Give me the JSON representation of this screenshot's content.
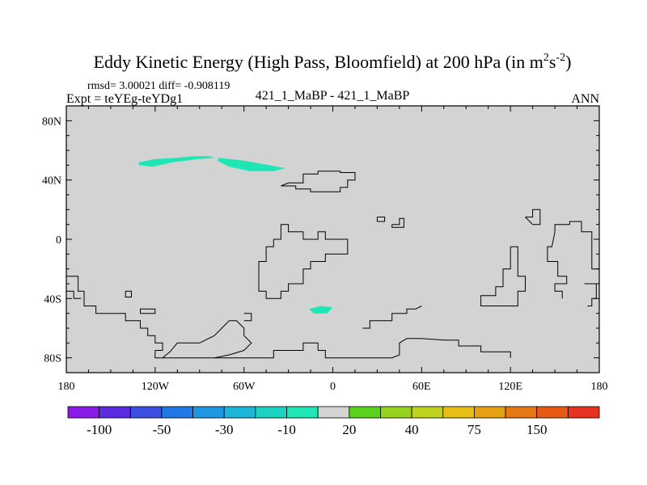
{
  "chart_data": {
    "type": "heatmap",
    "title": "Eddy Kinetic Energy (High Pass, Bloomfield) at 200 hPa (in m",
    "title_units": {
      "base": "s",
      "exp1": "2",
      "exp2": "-2",
      "close": ")"
    },
    "stats_line": "rmsd= 3.00021 diff= -0.908119",
    "left_subtitle": "Expt = teYEg-teYDg1",
    "center_subtitle": "421_1_MaBP - 421_1_MaBP",
    "right_subtitle": "ANN",
    "x_ticks": [
      {
        "value": -180,
        "label": "180"
      },
      {
        "value": -120,
        "label": "120W"
      },
      {
        "value": -60,
        "label": "60W"
      },
      {
        "value": 0,
        "label": "0"
      },
      {
        "value": 60,
        "label": "60E"
      },
      {
        "value": 120,
        "label": "120E"
      },
      {
        "value": 180,
        "label": "180"
      }
    ],
    "y_ticks": [
      {
        "value": 80,
        "label": "80N"
      },
      {
        "value": 40,
        "label": "40N"
      },
      {
        "value": 0,
        "label": "0"
      },
      {
        "value": -40,
        "label": "40S"
      },
      {
        "value": -80,
        "label": "80S"
      }
    ],
    "xlim": [
      -180,
      180
    ],
    "ylim": [
      -90,
      90
    ],
    "background_value_color": "#d3d3d3",
    "colorbar": {
      "colors": [
        "#8a1ae6",
        "#5a2ae0",
        "#3c4fe0",
        "#1f78e6",
        "#1e96e0",
        "#1cb4d8",
        "#1cd2c0",
        "#1ee6b4",
        "#d3d3d3",
        "#5ad21e",
        "#96d21e",
        "#bed21e",
        "#e6be14",
        "#e6a014",
        "#e67814",
        "#e65a14",
        "#e6321e"
      ],
      "labels": [
        {
          "index": 1,
          "text": "-100"
        },
        {
          "index": 3,
          "text": "-50"
        },
        {
          "index": 5,
          "text": "-30"
        },
        {
          "index": 7,
          "text": "-10"
        },
        {
          "index": 9,
          "text": "20"
        },
        {
          "index": 11,
          "text": "40"
        },
        {
          "index": 13,
          "text": "75"
        },
        {
          "index": 15,
          "text": "150"
        }
      ]
    },
    "anomaly_regions": [
      {
        "name": "north-atlantic-west",
        "level": "-10",
        "color": "#1ee6b4",
        "points": [
          [
            -131,
            52
          ],
          [
            -121,
            54
          ],
          [
            -106,
            55
          ],
          [
            -94,
            56
          ],
          [
            -83,
            56
          ],
          [
            -80,
            55
          ],
          [
            -92,
            54
          ],
          [
            -108,
            52
          ],
          [
            -122,
            49
          ],
          [
            -131,
            50
          ]
        ]
      },
      {
        "name": "north-atlantic-east",
        "level": "-10",
        "color": "#1ee6b4",
        "points": [
          [
            -77,
            55
          ],
          [
            -60,
            53
          ],
          [
            -43,
            50
          ],
          [
            -32,
            48
          ],
          [
            -40,
            46
          ],
          [
            -56,
            46
          ],
          [
            -70,
            49
          ],
          [
            -78,
            53
          ]
        ]
      },
      {
        "name": "southern-ocean-patch",
        "level": "-10",
        "color": "#1ee6b4",
        "points": [
          [
            -16,
            -47
          ],
          [
            -8,
            -45
          ],
          [
            0,
            -46
          ],
          [
            -4,
            -50
          ],
          [
            -13,
            -50
          ]
        ]
      }
    ],
    "coastlines": [
      [
        [
          -35,
          36
        ],
        [
          -30,
          38
        ],
        [
          -20,
          38
        ],
        [
          -20,
          44
        ],
        [
          -10,
          44
        ],
        [
          -10,
          46
        ],
        [
          5,
          46
        ],
        [
          5,
          45
        ],
        [
          15,
          45
        ],
        [
          15,
          40
        ],
        [
          10,
          40
        ],
        [
          10,
          35
        ],
        [
          5,
          35
        ],
        [
          5,
          32
        ],
        [
          -15,
          32
        ],
        [
          -15,
          34
        ],
        [
          -25,
          34
        ],
        [
          -25,
          36
        ],
        [
          -35,
          36
        ]
      ],
      [
        [
          -40,
          0
        ],
        [
          -35,
          0
        ],
        [
          -35,
          10
        ],
        [
          -30,
          10
        ],
        [
          -30,
          5
        ],
        [
          -20,
          5
        ],
        [
          -20,
          0
        ],
        [
          -10,
          0
        ],
        [
          -10,
          5
        ],
        [
          -5,
          5
        ],
        [
          -5,
          0
        ],
        [
          10,
          0
        ],
        [
          10,
          -10
        ],
        [
          -5,
          -10
        ],
        [
          -5,
          -15
        ],
        [
          -15,
          -15
        ],
        [
          -15,
          -20
        ],
        [
          -20,
          -20
        ],
        [
          -20,
          -30
        ],
        [
          -30,
          -30
        ],
        [
          -30,
          -35
        ],
        [
          -35,
          -35
        ],
        [
          -35,
          -40
        ],
        [
          -45,
          -40
        ],
        [
          -45,
          -35
        ],
        [
          -50,
          -35
        ],
        [
          -50,
          -15
        ],
        [
          -45,
          -15
        ],
        [
          -45,
          -5
        ],
        [
          -40,
          -5
        ],
        [
          -40,
          0
        ]
      ],
      [
        [
          -180,
          -25
        ],
        [
          -172,
          -25
        ],
        [
          -172,
          -35
        ],
        [
          -168,
          -35
        ],
        [
          -168,
          -45
        ],
        [
          -160,
          -45
        ],
        [
          -160,
          -50
        ],
        [
          -140,
          -50
        ],
        [
          -140,
          -55
        ],
        [
          -130,
          -55
        ],
        [
          -130,
          -60
        ],
        [
          -125,
          -60
        ],
        [
          -125,
          -65
        ],
        [
          -120,
          -65
        ],
        [
          -120,
          -70
        ],
        [
          -115,
          -70
        ],
        [
          -115,
          -75
        ],
        [
          -120,
          -75
        ],
        [
          -120,
          -80
        ],
        [
          -100,
          -80
        ],
        [
          -60,
          -80
        ],
        [
          -40,
          -80
        ],
        [
          -40,
          -75
        ],
        [
          -20,
          -75
        ],
        [
          -20,
          -70
        ],
        [
          -10,
          -70
        ],
        [
          -10,
          -75
        ],
        [
          -5,
          -75
        ],
        [
          -5,
          -80
        ],
        [
          40,
          -80
        ],
        [
          45,
          -78
        ],
        [
          45,
          -70
        ],
        [
          50,
          -67
        ],
        [
          60,
          -67
        ],
        [
          75,
          -68
        ],
        [
          85,
          -68
        ],
        [
          85,
          -72
        ],
        [
          100,
          -72
        ],
        [
          100,
          -76
        ],
        [
          120,
          -76
        ],
        [
          120,
          -80
        ]
      ],
      [
        [
          -130,
          -50
        ],
        [
          -120,
          -50
        ],
        [
          -120,
          -47
        ],
        [
          -125,
          -47
        ],
        [
          -130,
          -47
        ],
        [
          -130,
          -50
        ]
      ],
      [
        [
          -140,
          -35
        ],
        [
          -136,
          -35
        ],
        [
          -136,
          -39
        ],
        [
          -140,
          -39
        ],
        [
          -140,
          -35
        ]
      ],
      [
        [
          -115,
          -80
        ],
        [
          -110,
          -76
        ],
        [
          -105,
          -70
        ],
        [
          -90,
          -70
        ],
        [
          -80,
          -65
        ],
        [
          -75,
          -60
        ],
        [
          -70,
          -55
        ],
        [
          -65,
          -55
        ],
        [
          -60,
          -60
        ],
        [
          -60,
          -65
        ],
        [
          -55,
          -70
        ],
        [
          -60,
          -75
        ],
        [
          -70,
          -78
        ],
        [
          -80,
          -80
        ]
      ],
      [
        [
          60,
          -45
        ],
        [
          56,
          -47
        ],
        [
          50,
          -47
        ],
        [
          50,
          -50
        ],
        [
          40,
          -50
        ],
        [
          40,
          -55
        ],
        [
          25,
          -55
        ],
        [
          25,
          -60
        ],
        [
          20,
          -60
        ]
      ],
      [
        [
          30,
          15
        ],
        [
          30,
          12
        ],
        [
          35,
          12
        ],
        [
          35,
          15
        ],
        [
          30,
          15
        ]
      ],
      [
        [
          40,
          10
        ],
        [
          45,
          10
        ],
        [
          45,
          14
        ],
        [
          48,
          14
        ],
        [
          48,
          8
        ],
        [
          40,
          8
        ],
        [
          40,
          10
        ]
      ],
      [
        [
          120,
          -5
        ],
        [
          125,
          -5
        ],
        [
          125,
          -25
        ],
        [
          130,
          -25
        ],
        [
          130,
          -35
        ],
        [
          125,
          -35
        ],
        [
          125,
          -45
        ],
        [
          100,
          -45
        ],
        [
          100,
          -38
        ],
        [
          110,
          -38
        ],
        [
          110,
          -32
        ],
        [
          115,
          -32
        ],
        [
          115,
          -20
        ],
        [
          120,
          -20
        ],
        [
          120,
          -5
        ]
      ],
      [
        [
          130,
          15
        ],
        [
          135,
          15
        ],
        [
          135,
          20
        ],
        [
          140,
          20
        ],
        [
          140,
          10
        ],
        [
          135,
          10
        ],
        [
          130,
          15
        ]
      ],
      [
        [
          150,
          5
        ],
        [
          150,
          10
        ],
        [
          160,
          10
        ],
        [
          160,
          12
        ],
        [
          168,
          12
        ],
        [
          168,
          5
        ],
        [
          175,
          5
        ],
        [
          175,
          -20
        ],
        [
          180,
          -20
        ]
      ],
      [
        [
          150,
          5
        ],
        [
          148,
          -5
        ],
        [
          145,
          -5
        ],
        [
          145,
          -15
        ],
        [
          152,
          -15
        ],
        [
          152,
          -25
        ],
        [
          158,
          -25
        ],
        [
          158,
          -30
        ],
        [
          150,
          -30
        ],
        [
          150,
          -35
        ],
        [
          155,
          -35
        ],
        [
          155,
          -40
        ]
      ],
      [
        [
          -180,
          -35
        ],
        [
          -175,
          -35
        ],
        [
          -175,
          -40
        ],
        [
          -170,
          -40
        ]
      ],
      [
        [
          -60,
          -50
        ],
        [
          -55,
          -50
        ],
        [
          -55,
          -55
        ],
        [
          -60,
          -55
        ]
      ],
      [
        [
          170,
          -30
        ],
        [
          178,
          -30
        ],
        [
          178,
          -40
        ],
        [
          175,
          -40
        ],
        [
          175,
          -45
        ],
        [
          172,
          -45
        ]
      ]
    ]
  }
}
